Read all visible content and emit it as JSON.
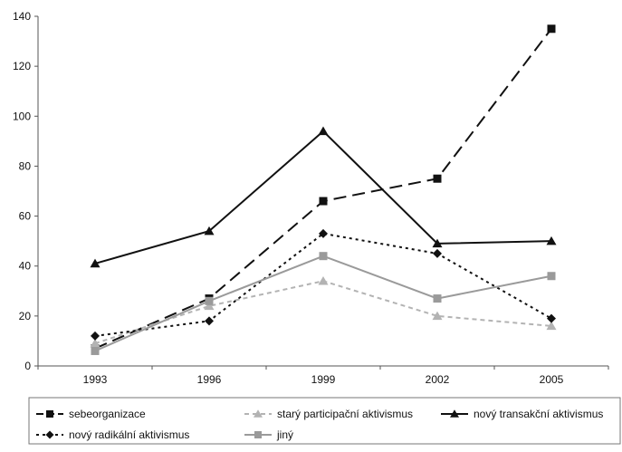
{
  "chart_data": {
    "type": "line",
    "title": "",
    "xlabel": "",
    "ylabel": "",
    "x": [
      "1993",
      "1996",
      "1999",
      "2002",
      "2005"
    ],
    "ylim": [
      0,
      140
    ],
    "yticks": [
      0,
      20,
      40,
      60,
      80,
      100,
      120,
      140
    ],
    "grid": false,
    "legend_position": "bottom",
    "series": [
      {
        "name": "sebeorganizace",
        "values": [
          7,
          27,
          66,
          75,
          135
        ],
        "color": "#111111",
        "line_style": "long-dash",
        "marker": "square"
      },
      {
        "name": "starý participační aktivismus",
        "values": [
          9,
          24,
          34,
          20,
          16
        ],
        "color": "#b3b3b3",
        "line_style": "short-dash",
        "marker": "triangle"
      },
      {
        "name": "nový transakční aktivismus",
        "values": [
          41,
          54,
          94,
          49,
          50
        ],
        "color": "#111111",
        "line_style": "solid",
        "marker": "triangle"
      },
      {
        "name": "nový radikální aktivismus",
        "values": [
          12,
          18,
          53,
          45,
          19
        ],
        "color": "#111111",
        "line_style": "dotted",
        "marker": "diamond"
      },
      {
        "name": "jiný",
        "values": [
          6,
          26,
          44,
          27,
          36
        ],
        "color": "#9a9a9a",
        "line_style": "solid",
        "marker": "square"
      }
    ]
  }
}
